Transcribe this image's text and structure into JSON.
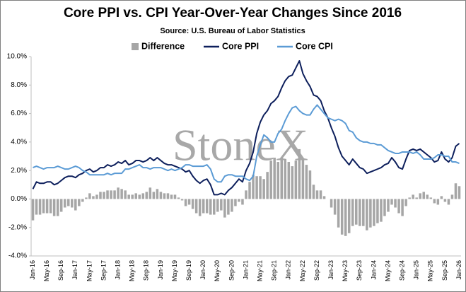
{
  "chart_data": {
    "type": "bar-line",
    "title": "Core PPI vs. CPI Year-Over-Year Changes Since 2016",
    "subtitle": "Source: U.S. Bureau of Labor Statistics",
    "watermark": "StoneX",
    "categories": [
      "Jan-16",
      null,
      null,
      null,
      "May-16",
      null,
      null,
      null,
      "Sep-16",
      null,
      null,
      null,
      "Jan-17",
      null,
      null,
      null,
      "May-17",
      null,
      null,
      null,
      "Sep-17",
      null,
      null,
      null,
      "Jan-18",
      null,
      null,
      null,
      "May-18",
      null,
      null,
      null,
      "Sep-18",
      null,
      null,
      null,
      "Jan-19",
      null,
      null,
      null,
      "May-19",
      null,
      null,
      null,
      "Sep-19",
      null,
      null,
      null,
      "Jan-20",
      null,
      null,
      null,
      "May-20",
      null,
      null,
      null,
      "Sep-20",
      null,
      null,
      null,
      "Jan-21",
      null,
      null,
      null,
      "May-21",
      null,
      null,
      null,
      "Sep-21",
      null,
      null,
      null,
      "Jan-22",
      null,
      null,
      null,
      "May-22",
      null,
      null,
      null,
      "Sep-22",
      null,
      null,
      null,
      "Jan-23",
      null,
      null,
      null,
      "May-23",
      null,
      null,
      null,
      "Sep-23",
      null,
      null,
      null,
      "Jan-24",
      null,
      null,
      null,
      "May-24",
      null,
      null,
      null,
      "Sep-24",
      null,
      null,
      null,
      "Jan-25",
      null,
      null,
      null,
      "May-25",
      null,
      null,
      null,
      "Sep-25",
      null,
      null,
      null,
      "Jan-26"
    ],
    "series": [
      {
        "name": "Difference",
        "kind": "bar",
        "color": "#a6a6a6",
        "values": [
          -1.5,
          -1.1,
          -1.1,
          -1.0,
          -1.0,
          -1.0,
          -1.2,
          -1.2,
          -0.9,
          -0.6,
          -0.5,
          -0.6,
          -0.8,
          -0.5,
          -0.2,
          0.1,
          0.4,
          0.2,
          0.3,
          0.5,
          0.5,
          0.6,
          0.6,
          0.6,
          0.8,
          0.7,
          0.6,
          0.3,
          0.3,
          0.4,
          0.3,
          0.4,
          0.5,
          0.8,
          0.5,
          0.7,
          0.5,
          0.4,
          0.4,
          0.3,
          0.3,
          0.1,
          -0.1,
          -0.5,
          -0.4,
          -0.7,
          -1.0,
          -1.2,
          -1.0,
          -1.0,
          -1.1,
          -1.1,
          -0.9,
          -0.8,
          -1.3,
          -1.1,
          -0.9,
          -0.5,
          -0.2,
          -0.4,
          0.6,
          1.2,
          1.7,
          1.6,
          1.6,
          1.4,
          1.9,
          2.7,
          2.9,
          2.6,
          2.9,
          2.8,
          2.6,
          2.3,
          2.7,
          3.5,
          2.8,
          2.4,
          2.0,
          1.0,
          0.6,
          0.6,
          0.2,
          0.0,
          -0.6,
          -1.1,
          -2.0,
          -2.5,
          -2.6,
          -2.4,
          -1.9,
          -1.8,
          -1.9,
          -1.9,
          -2.2,
          -2.0,
          -1.9,
          -1.7,
          -1.6,
          -1.2,
          -0.9,
          -0.4,
          -0.6,
          -1.0,
          -1.2,
          -0.5,
          0.1,
          0.3,
          0.1,
          0.4,
          0.5,
          0.3,
          0.1,
          -0.3,
          -0.4,
          0.2,
          -0.2,
          -0.4,
          0.3,
          1.1,
          0.9
        ]
      },
      {
        "name": "Core PPI",
        "kind": "line",
        "color": "#0d1f5c",
        "values": [
          0.7,
          1.2,
          1.1,
          1.1,
          1.2,
          1.2,
          1.0,
          1.1,
          1.3,
          1.5,
          1.6,
          1.6,
          1.5,
          1.7,
          1.8,
          2.0,
          2.1,
          1.9,
          2.0,
          2.2,
          2.2,
          2.4,
          2.3,
          2.4,
          2.6,
          2.5,
          2.7,
          2.4,
          2.5,
          2.7,
          2.7,
          2.6,
          2.7,
          2.9,
          2.7,
          2.9,
          2.7,
          2.5,
          2.4,
          2.4,
          2.3,
          2.2,
          2.1,
          1.9,
          2.0,
          1.6,
          1.3,
          1.1,
          1.3,
          1.4,
          1.0,
          0.3,
          0.3,
          0.4,
          0.3,
          0.6,
          0.8,
          1.1,
          1.4,
          1.2,
          2.0,
          2.5,
          3.3,
          4.6,
          5.4,
          5.9,
          6.2,
          6.7,
          6.9,
          7.2,
          7.8,
          8.3,
          8.6,
          8.7,
          9.2,
          9.7,
          8.8,
          8.3,
          7.9,
          7.3,
          7.2,
          6.9,
          6.2,
          5.7,
          5.0,
          4.4,
          3.6,
          3.0,
          2.7,
          2.4,
          2.8,
          2.5,
          2.2,
          2.1,
          1.8,
          1.9,
          2.0,
          2.1,
          2.2,
          2.4,
          2.5,
          2.9,
          2.6,
          2.2,
          2.1,
          2.8,
          3.4,
          3.5,
          3.4,
          3.5,
          3.3,
          3.1,
          2.9,
          2.6,
          2.7,
          3.3,
          2.8,
          2.6,
          2.9,
          3.7,
          3.9
        ]
      },
      {
        "name": "Core CPI",
        "kind": "line",
        "color": "#5b9bd5",
        "values": [
          2.2,
          2.3,
          2.2,
          2.1,
          2.2,
          2.2,
          2.2,
          2.3,
          2.2,
          2.1,
          2.1,
          2.2,
          2.3,
          2.2,
          2.0,
          1.9,
          1.7,
          1.7,
          1.7,
          1.7,
          1.7,
          1.8,
          1.7,
          1.8,
          1.8,
          1.8,
          2.1,
          2.1,
          2.2,
          2.3,
          2.4,
          2.2,
          2.2,
          2.1,
          2.2,
          2.2,
          2.2,
          2.1,
          2.0,
          2.1,
          2.0,
          2.1,
          2.2,
          2.4,
          2.4,
          2.3,
          2.3,
          2.3,
          2.3,
          2.4,
          2.1,
          1.4,
          1.2,
          1.2,
          1.6,
          1.7,
          1.7,
          1.6,
          1.6,
          1.6,
          1.4,
          1.3,
          1.6,
          3.0,
          3.8,
          4.5,
          4.3,
          4.0,
          4.0,
          4.6,
          4.9,
          5.5,
          6.0,
          6.4,
          6.5,
          6.2,
          6.0,
          5.9,
          5.9,
          6.3,
          6.6,
          6.3,
          6.0,
          5.7,
          5.6,
          5.5,
          5.6,
          5.5,
          5.3,
          4.8,
          4.7,
          4.3,
          4.1,
          4.0,
          4.0,
          3.9,
          3.9,
          3.8,
          3.8,
          3.6,
          3.4,
          3.3,
          3.2,
          3.2,
          3.3,
          3.3,
          3.3,
          3.2,
          3.3,
          3.1,
          2.8,
          2.8,
          2.8,
          2.9,
          3.1,
          3.1,
          3.0,
          3.0,
          2.6,
          2.6,
          2.5
        ]
      }
    ],
    "ylim": [
      -4,
      10
    ],
    "yticks": [
      {
        "value": -4,
        "label": "-4.0%"
      },
      {
        "value": -2,
        "label": "-2.0%"
      },
      {
        "value": 0,
        "label": "0.0%"
      },
      {
        "value": 2,
        "label": "2.0%"
      },
      {
        "value": 4,
        "label": "4.0%"
      },
      {
        "value": 6,
        "label": "6.0%"
      },
      {
        "value": 8,
        "label": "8.0%"
      },
      {
        "value": 10,
        "label": "10.0%"
      }
    ],
    "grid": false,
    "legend": "top"
  }
}
